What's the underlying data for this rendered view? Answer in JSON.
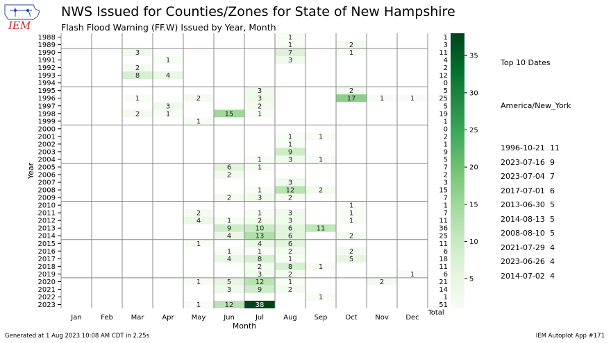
{
  "title": "NWS Issued for Counties/Zones for State of New Hampshire",
  "subtitle": "Flash Flood Warning (FF.W) Issued by Year, Month",
  "logo_text": "IEM",
  "footer": {
    "generated": "Generated at 1 Aug 2023 10:08 AM CDT in 2.25s",
    "app": "IEM Autoplot App #171"
  },
  "top10": {
    "heading": "Top 10 Dates",
    "timezone": "America/New_York",
    "items": [
      {
        "date": "1996-10-21",
        "count": "11"
      },
      {
        "date": "2023-07-16",
        "count": "9"
      },
      {
        "date": "2023-07-04",
        "count": "7"
      },
      {
        "date": "2017-07-01",
        "count": "6"
      },
      {
        "date": "2013-06-30",
        "count": "5"
      },
      {
        "date": "2014-08-13",
        "count": "5"
      },
      {
        "date": "2008-08-10",
        "count": "5"
      },
      {
        "date": "2021-07-29",
        "count": "4"
      },
      {
        "date": "2023-06-26",
        "count": "4"
      },
      {
        "date": "2014-07-02",
        "count": "4"
      }
    ]
  },
  "chart_data": {
    "type": "heatmap",
    "xlabel": "Month",
    "ylabel": "Year",
    "months": [
      "Jan",
      "Feb",
      "Mar",
      "Apr",
      "May",
      "Jun",
      "Jul",
      "Aug",
      "Sep",
      "Oct",
      "Nov",
      "Dec"
    ],
    "total_label": "Total",
    "years": [
      1988,
      1989,
      1990,
      1991,
      1992,
      1993,
      1994,
      1995,
      1996,
      1997,
      1998,
      1999,
      2000,
      2001,
      2002,
      2003,
      2004,
      2005,
      2006,
      2007,
      2008,
      2009,
      2010,
      2011,
      2012,
      2013,
      2014,
      2015,
      2016,
      2017,
      2018,
      2019,
      2020,
      2021,
      2022,
      2023
    ],
    "cells": [
      {
        "year": 1988,
        "month": 8,
        "value": 1
      },
      {
        "year": 1989,
        "month": 8,
        "value": 1
      },
      {
        "year": 1989,
        "month": 10,
        "value": 2
      },
      {
        "year": 1990,
        "month": 3,
        "value": 3
      },
      {
        "year": 1990,
        "month": 8,
        "value": 7
      },
      {
        "year": 1990,
        "month": 10,
        "value": 1
      },
      {
        "year": 1991,
        "month": 4,
        "value": 1
      },
      {
        "year": 1991,
        "month": 8,
        "value": 3
      },
      {
        "year": 1992,
        "month": 3,
        "value": 2
      },
      {
        "year": 1993,
        "month": 3,
        "value": 8
      },
      {
        "year": 1993,
        "month": 4,
        "value": 4
      },
      {
        "year": 1995,
        "month": 7,
        "value": 3
      },
      {
        "year": 1995,
        "month": 10,
        "value": 2
      },
      {
        "year": 1996,
        "month": 3,
        "value": 1
      },
      {
        "year": 1996,
        "month": 5,
        "value": 2
      },
      {
        "year": 1996,
        "month": 7,
        "value": 3
      },
      {
        "year": 1996,
        "month": 10,
        "value": 17
      },
      {
        "year": 1996,
        "month": 11,
        "value": 1
      },
      {
        "year": 1996,
        "month": 12,
        "value": 1
      },
      {
        "year": 1997,
        "month": 4,
        "value": 3
      },
      {
        "year": 1997,
        "month": 7,
        "value": 2
      },
      {
        "year": 1998,
        "month": 3,
        "value": 2
      },
      {
        "year": 1998,
        "month": 4,
        "value": 1
      },
      {
        "year": 1998,
        "month": 6,
        "value": 15
      },
      {
        "year": 1998,
        "month": 7,
        "value": 1
      },
      {
        "year": 1999,
        "month": 5,
        "value": 1
      },
      {
        "year": 2001,
        "month": 8,
        "value": 1
      },
      {
        "year": 2001,
        "month": 9,
        "value": 1
      },
      {
        "year": 2002,
        "month": 8,
        "value": 1
      },
      {
        "year": 2003,
        "month": 8,
        "value": 9
      },
      {
        "year": 2004,
        "month": 7,
        "value": 1
      },
      {
        "year": 2004,
        "month": 8,
        "value": 3
      },
      {
        "year": 2004,
        "month": 9,
        "value": 1
      },
      {
        "year": 2005,
        "month": 6,
        "value": 6
      },
      {
        "year": 2005,
        "month": 7,
        "value": 1
      },
      {
        "year": 2006,
        "month": 6,
        "value": 2
      },
      {
        "year": 2007,
        "month": 8,
        "value": 3
      },
      {
        "year": 2008,
        "month": 7,
        "value": 1
      },
      {
        "year": 2008,
        "month": 8,
        "value": 12
      },
      {
        "year": 2008,
        "month": 9,
        "value": 2
      },
      {
        "year": 2009,
        "month": 6,
        "value": 2
      },
      {
        "year": 2009,
        "month": 7,
        "value": 3
      },
      {
        "year": 2009,
        "month": 8,
        "value": 2
      },
      {
        "year": 2010,
        "month": 10,
        "value": 1
      },
      {
        "year": 2011,
        "month": 5,
        "value": 2
      },
      {
        "year": 2011,
        "month": 7,
        "value": 1
      },
      {
        "year": 2011,
        "month": 8,
        "value": 3
      },
      {
        "year": 2011,
        "month": 10,
        "value": 1
      },
      {
        "year": 2012,
        "month": 5,
        "value": 4
      },
      {
        "year": 2012,
        "month": 6,
        "value": 1
      },
      {
        "year": 2012,
        "month": 7,
        "value": 2
      },
      {
        "year": 2012,
        "month": 8,
        "value": 3
      },
      {
        "year": 2012,
        "month": 10,
        "value": 1
      },
      {
        "year": 2013,
        "month": 6,
        "value": 9
      },
      {
        "year": 2013,
        "month": 7,
        "value": 10
      },
      {
        "year": 2013,
        "month": 8,
        "value": 6
      },
      {
        "year": 2013,
        "month": 9,
        "value": 11
      },
      {
        "year": 2014,
        "month": 6,
        "value": 4
      },
      {
        "year": 2014,
        "month": 7,
        "value": 13
      },
      {
        "year": 2014,
        "month": 8,
        "value": 6
      },
      {
        "year": 2014,
        "month": 10,
        "value": 2
      },
      {
        "year": 2015,
        "month": 5,
        "value": 1
      },
      {
        "year": 2015,
        "month": 7,
        "value": 4
      },
      {
        "year": 2015,
        "month": 8,
        "value": 6
      },
      {
        "year": 2016,
        "month": 6,
        "value": 1
      },
      {
        "year": 2016,
        "month": 7,
        "value": 1
      },
      {
        "year": 2016,
        "month": 8,
        "value": 2
      },
      {
        "year": 2016,
        "month": 10,
        "value": 2
      },
      {
        "year": 2017,
        "month": 6,
        "value": 4
      },
      {
        "year": 2017,
        "month": 7,
        "value": 8
      },
      {
        "year": 2017,
        "month": 8,
        "value": 1
      },
      {
        "year": 2017,
        "month": 10,
        "value": 5
      },
      {
        "year": 2018,
        "month": 7,
        "value": 2
      },
      {
        "year": 2018,
        "month": 8,
        "value": 8
      },
      {
        "year": 2018,
        "month": 9,
        "value": 1
      },
      {
        "year": 2019,
        "month": 7,
        "value": 3
      },
      {
        "year": 2019,
        "month": 8,
        "value": 2
      },
      {
        "year": 2019,
        "month": 12,
        "value": 1
      },
      {
        "year": 2020,
        "month": 5,
        "value": 1
      },
      {
        "year": 2020,
        "month": 6,
        "value": 5
      },
      {
        "year": 2020,
        "month": 7,
        "value": 12
      },
      {
        "year": 2020,
        "month": 8,
        "value": 1
      },
      {
        "year": 2020,
        "month": 11,
        "value": 2
      },
      {
        "year": 2021,
        "month": 6,
        "value": 3
      },
      {
        "year": 2021,
        "month": 7,
        "value": 9
      },
      {
        "year": 2021,
        "month": 8,
        "value": 2
      },
      {
        "year": 2022,
        "month": 9,
        "value": 1
      },
      {
        "year": 2023,
        "month": 5,
        "value": 1
      },
      {
        "year": 2023,
        "month": 6,
        "value": 12
      },
      {
        "year": 2023,
        "month": 7,
        "value": 38
      }
    ],
    "totals": [
      1,
      3,
      11,
      4,
      2,
      12,
      0,
      5,
      25,
      5,
      19,
      1,
      0,
      2,
      1,
      9,
      5,
      7,
      2,
      3,
      15,
      7,
      1,
      7,
      11,
      36,
      25,
      11,
      6,
      18,
      11,
      6,
      21,
      14,
      1,
      51
    ],
    "colorbar": {
      "min": 1,
      "max": 38,
      "ticks": [
        5,
        10,
        15,
        20,
        25,
        30,
        35
      ]
    },
    "colors": {
      "low": "#f7fcf5",
      "high": "#00441b",
      "grid": "#888888"
    }
  }
}
